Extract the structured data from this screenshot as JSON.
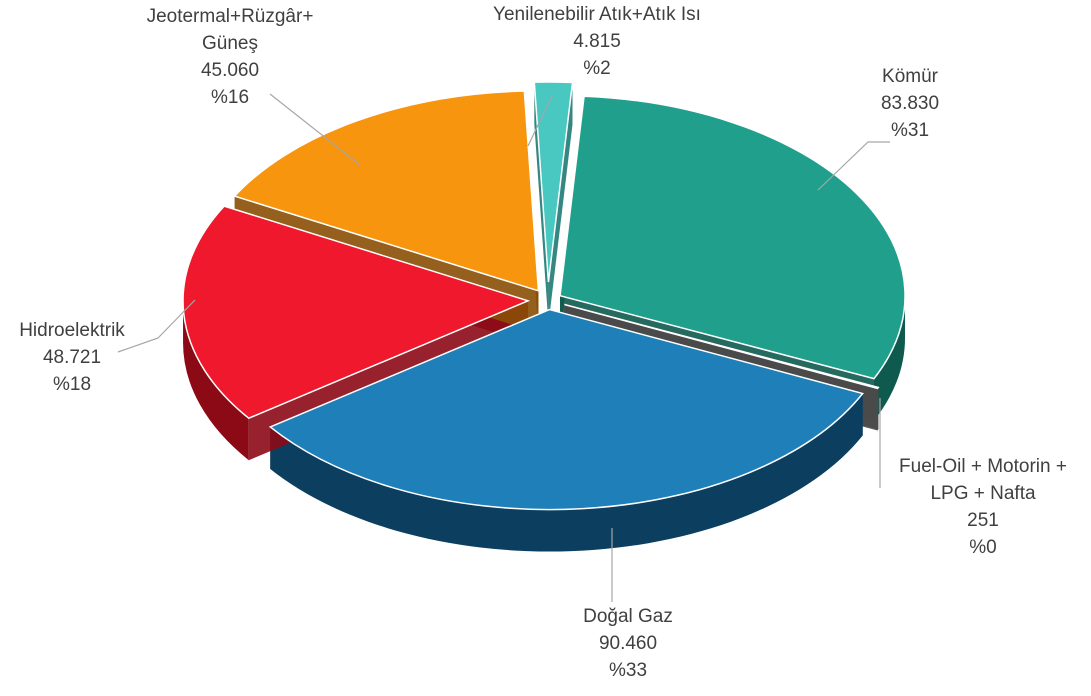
{
  "chart_data": {
    "type": "pie",
    "title": "",
    "slices": [
      {
        "name": "Kömür",
        "value_label": "83.830",
        "value": 83830,
        "percent_label": "%31",
        "color": "#20A08C",
        "dark": "#0E5A4E",
        "icon": "slice-komur"
      },
      {
        "name": "Fuel-Oil + Motorin + LPG + Nafta",
        "name_lines": [
          "Fuel-Oil + Motorin +",
          "LPG + Nafta"
        ],
        "value_label": "251",
        "value": 251,
        "percent_label": "%0",
        "color": "#8C8C8C",
        "dark": "#4A4A4A",
        "icon": "slice-fuel-oil"
      },
      {
        "name": "Doğal Gaz",
        "value_label": "90.460",
        "value": 90460,
        "percent_label": "%33",
        "color": "#1F7FB8",
        "dark": "#0B3E5F",
        "icon": "slice-dogal-gaz"
      },
      {
        "name": "Hidroelektrik",
        "value_label": "48.721",
        "value": 48721,
        "percent_label": "%18",
        "color": "#F0182C",
        "dark": "#8C0A16",
        "icon": "slice-hidroelektrik"
      },
      {
        "name": "Jeotermal+Rüzgâr+Güneş",
        "name_lines": [
          "Jeotermal+Rüzgâr+",
          "Güneş"
        ],
        "value_label": "45.060",
        "value": 45060,
        "percent_label": "%16",
        "color": "#F7950F",
        "dark": "#8A4E05",
        "icon": "slice-jeotermal"
      },
      {
        "name": "Yenilenebilir Atık+Atık Isı",
        "value_label": "4.815",
        "value": 4815,
        "percent_label": "%2",
        "color": "#48C8C0",
        "dark": "#1F7A74",
        "icon": "slice-yenilenebilir"
      }
    ]
  }
}
